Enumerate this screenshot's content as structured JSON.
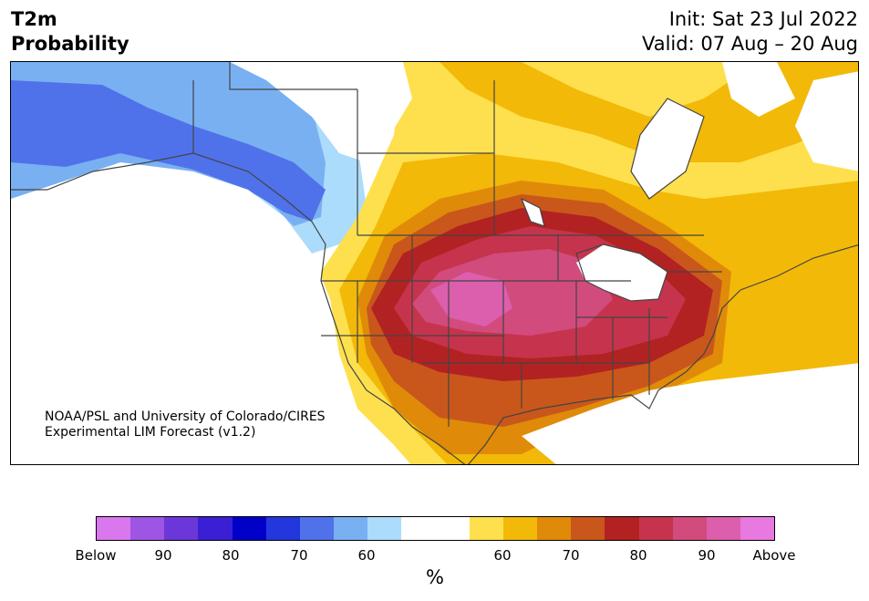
{
  "header": {
    "variable": "T2m",
    "product": "Probability",
    "init": "Init: Sat 23 Jul 2022",
    "valid": "Valid: 07 Aug – 20 Aug"
  },
  "credit": {
    "line1": "NOAA/PSL and University of Colorado/CIRES",
    "line2": "Experimental LIM Forecast (v1.2)"
  },
  "colorbar": {
    "colors": [
      "#d977ee",
      "#9e55e3",
      "#6b37d9",
      "#3a1fd4",
      "#0000c8",
      "#2437dc",
      "#4f72ea",
      "#79b0f2",
      "#acdcfb",
      "#ffffff",
      "#ffffff",
      "#fee04e",
      "#f2b908",
      "#e08a0a",
      "#c9571b",
      "#b22222",
      "#c5344c",
      "#d24b7d",
      "#db5fac",
      "#e779e0"
    ],
    "tick_labels": [
      "Below",
      "90",
      "80",
      "70",
      "60",
      "60",
      "70",
      "80",
      "90",
      "Above"
    ],
    "unit": "%"
  },
  "map": {
    "region": "North America",
    "colors": {
      "land_outline": "#444444",
      "warm_60": "#fee04e",
      "warm_70": "#e08a0a",
      "warm_80": "#b22222",
      "warm_90": "#d24b7d",
      "cold_60": "#acdcfb",
      "cold_70": "#79b0f2",
      "cold_80": "#4f72ea"
    }
  }
}
